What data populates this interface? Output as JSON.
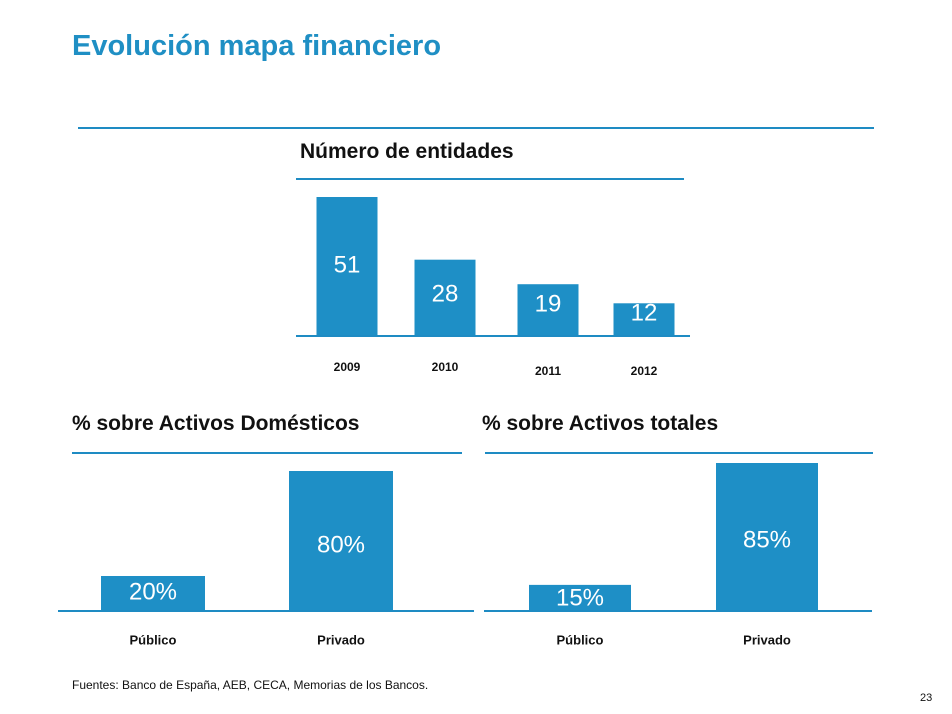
{
  "page": {
    "title": "Evolución mapa financiero",
    "source": "Fuentes: Banco de España, AEB, CECA, Memorias de los Bancos.",
    "page_number": "23"
  },
  "colors": {
    "bar": "#1e8fc6",
    "rule": "#1e8bc3",
    "title": "#1f8fc4"
  },
  "chart_data": [
    {
      "id": "entities",
      "type": "bar",
      "title": "Número de entidades",
      "categories": [
        "2009",
        "2010",
        "2011",
        "2012"
      ],
      "values": [
        51,
        28,
        19,
        12
      ],
      "labels": [
        "51",
        "28",
        "19",
        "12"
      ],
      "ylim": [
        0,
        51
      ],
      "grid": false,
      "legend": "none"
    },
    {
      "id": "domestic",
      "type": "bar",
      "title": "% sobre Activos Domésticos",
      "categories": [
        "Público",
        "Privado"
      ],
      "values": [
        20,
        80
      ],
      "labels": [
        "20%",
        "80%"
      ],
      "ylim": [
        0,
        80
      ],
      "grid": false,
      "legend": "none"
    },
    {
      "id": "total",
      "type": "bar",
      "title": "% sobre Activos totales",
      "categories": [
        "Público",
        "Privado"
      ],
      "values": [
        15,
        85
      ],
      "labels": [
        "15%",
        "85%"
      ],
      "ylim": [
        0,
        85
      ],
      "grid": false,
      "legend": "none"
    }
  ]
}
